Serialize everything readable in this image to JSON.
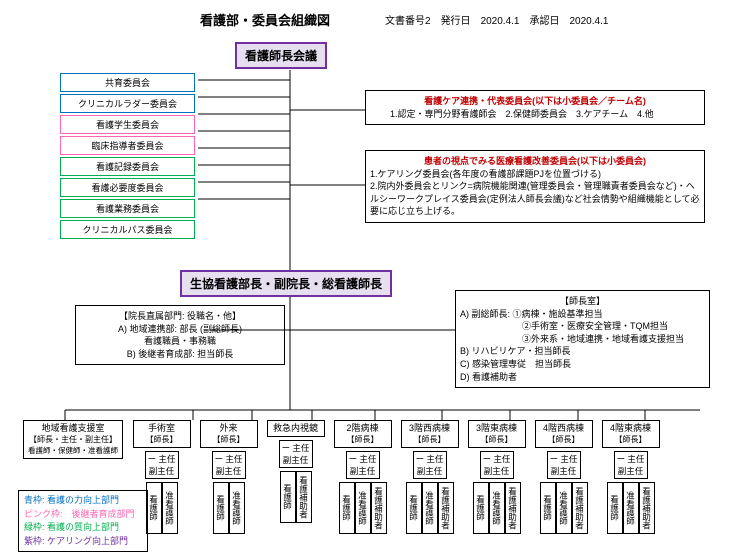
{
  "title": "看護部・委員会組織図",
  "meta": {
    "docno": "文書番号2",
    "issue_label": "発行日",
    "issue": "2020.4.1",
    "approve_label": "承認日",
    "approve": "2020.4.1"
  },
  "top_header": "看護師長会議",
  "committees": [
    {
      "label": "共育委員会",
      "color": "blue"
    },
    {
      "label": "クリニカルラダー委員会",
      "color": "blue"
    },
    {
      "label": "看護学生委員会",
      "color": "pink"
    },
    {
      "label": "臨床指導者委員会",
      "color": "pink"
    },
    {
      "label": "看護記録委員会",
      "color": "green"
    },
    {
      "label": "看護必要度委員会",
      "color": "green"
    },
    {
      "label": "看護業務委員会",
      "color": "green"
    },
    {
      "label": "クリニカルパス委員会",
      "color": "green"
    }
  ],
  "right_box1": {
    "title": "看護ケア連携・代表委員会(以下は小委員会／チーム名)",
    "body": "1.認定・専門分野看護師会　2.保健師委員会　3.ケアチーム　4.他"
  },
  "right_box2": {
    "title": "患者の視点でみる医療看護改善委員会(以下は小委員会)",
    "body": "1.ケアリング委員会(各年度の看護部課題PJを位置づける)\n2.院内外委員会とリンク=病院機能関連(管理委員会・管理職責者委員会など)・ヘルシーワークプレイス委員会(定例法人師長会議)など社会情勢や組織機能として必要に応じ立ち上げる。"
  },
  "mid_header": "生協看護部長・副院長・総看護師長",
  "mid_left": {
    "title": "【院長直属部門: 役職名・他】",
    "lines": [
      "A) 地域連携部: 部長 (副総師長)",
      "看護職員・事務職",
      "B) 後継者育成部: 担当師長"
    ]
  },
  "mid_right": {
    "title": "【師長室】",
    "lines": [
      "A) 副総師長: ①病棟・施設基準担当",
      "②手術室・医療安全管理・TQM担当",
      "③外来系・地域連携・地域看護支援担当",
      "B) リハビリケア・担当師長",
      "C) 感染管理専従　担当師長",
      "D) 看護補助者"
    ]
  },
  "wards": [
    {
      "name": "地域看護支援室",
      "sub": "【師長・主任・副主任】",
      "extra": "看護師・保健師・准看護師",
      "wide": true
    },
    {
      "name": "手術室",
      "sub": "【師長】"
    },
    {
      "name": "外来",
      "sub": "【師長】"
    },
    {
      "name": "救急内視鏡",
      "sub": ""
    },
    {
      "name": "2階病棟",
      "sub": "【師長】"
    },
    {
      "name": "3階西病棟",
      "sub": "【師長】"
    },
    {
      "name": "3階東病棟",
      "sub": "【師長】"
    },
    {
      "name": "4階西病棟",
      "sub": "【師長】"
    },
    {
      "name": "4階東病棟",
      "sub": "【師長】"
    }
  ],
  "sub_roles": {
    "l1": "主任",
    "l2": "副主任"
  },
  "staff": [
    "看護師",
    "准看護師",
    "看護補助者"
  ],
  "legend": [
    {
      "color": "#0070c0",
      "text": "青枠: 看護の力向上部門"
    },
    {
      "color": "#ff66b3",
      "text": "ピンク枠:　後継者育成部門"
    },
    {
      "color": "#00b050",
      "text": "緑枠: 看護の質向上部門"
    },
    {
      "color": "#7030a0",
      "text": "紫枠: ケアリング向上部門"
    }
  ]
}
